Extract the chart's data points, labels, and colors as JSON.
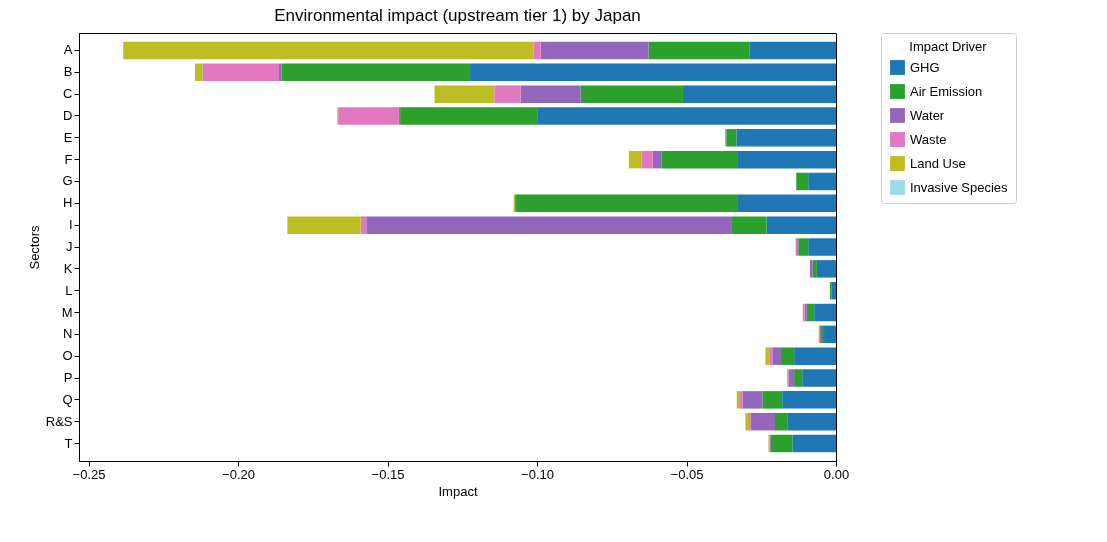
{
  "chart_data": {
    "type": "bar",
    "orientation": "horizontal",
    "stacked": true,
    "title": "Environmental impact (upstream tier 1) by Japan",
    "xlabel": "Impact",
    "ylabel": "Sectors",
    "legend_title": "Impact Driver",
    "legend": "right",
    "grid": false,
    "categories": [
      "A",
      "B",
      "C",
      "D",
      "E",
      "F",
      "G",
      "H",
      "I",
      "J",
      "K",
      "L",
      "M",
      "N",
      "O",
      "P",
      "Q",
      "R&S",
      "T"
    ],
    "xlim": [
      -0.2532,
      0
    ],
    "xticks": [
      {
        "value": -0.25,
        "label": "−0.25"
      },
      {
        "value": -0.2,
        "label": "−0.20"
      },
      {
        "value": -0.15,
        "label": "−0.15"
      },
      {
        "value": -0.1,
        "label": "−0.10"
      },
      {
        "value": -0.05,
        "label": "−0.05"
      },
      {
        "value": 0,
        "label": "0.00"
      }
    ],
    "series": [
      {
        "name": "GHG",
        "color": "#1f77b4",
        "values": [
          -0.029,
          -0.1224,
          -0.0512,
          -0.0997,
          -0.0333,
          -0.0328,
          -0.0093,
          -0.0328,
          -0.0232,
          -0.0093,
          -0.0064,
          -0.0014,
          -0.0073,
          -0.004,
          -0.014,
          -0.0113,
          -0.018,
          -0.0161,
          -0.0146
        ]
      },
      {
        "name": "Air Emission",
        "color": "#2ca02c",
        "values": [
          -0.0337,
          -0.063,
          -0.0342,
          -0.0461,
          -0.0034,
          -0.0255,
          -0.004,
          -0.0742,
          -0.0116,
          -0.0033,
          -0.0014,
          -0.0006,
          -0.0025,
          -0.001,
          -0.0044,
          -0.0027,
          -0.0066,
          -0.0043,
          -0.0072
        ]
      },
      {
        "name": "Water",
        "color": "#9467bd",
        "values": [
          -0.0361,
          -0.0009,
          -0.0201,
          -0.0004,
          -0.0002,
          -0.003,
          null,
          -0.0004,
          -0.1223,
          -0.0004,
          -0.0009,
          null,
          -0.0007,
          -0.0004,
          -0.0029,
          -0.0019,
          -0.0067,
          -0.0081,
          -0.0004
        ]
      },
      {
        "name": "Waste",
        "color": "#e377c2",
        "values": [
          -0.0023,
          -0.0256,
          -0.0088,
          -0.0203,
          -0.0002,
          -0.0037,
          null,
          null,
          -0.0019,
          -0.0005,
          null,
          null,
          -0.0006,
          null,
          -0.0008,
          -0.0002,
          -0.0008,
          -0.0006,
          null
        ]
      },
      {
        "name": "Land Use",
        "color": "#bcbd22",
        "values": [
          -0.1373,
          -0.0025,
          -0.02,
          -0.0003,
          null,
          -0.0043,
          null,
          -0.0004,
          -0.0245,
          null,
          null,
          null,
          null,
          -0.0004,
          -0.0015,
          -0.0003,
          -0.0011,
          -0.0012,
          -0.0004
        ]
      },
      {
        "name": "Invasive Species",
        "color": "#9edae5",
        "values": [
          null,
          null,
          null,
          null,
          null,
          null,
          null,
          null,
          null,
          null,
          null,
          null,
          null,
          null,
          null,
          null,
          null,
          null,
          null
        ]
      }
    ]
  }
}
